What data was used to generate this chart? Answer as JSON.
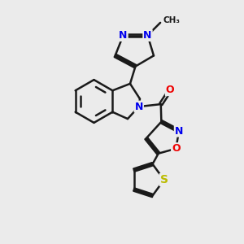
{
  "background_color": "#ebebeb",
  "bond_color": "#1a1a1a",
  "bond_width": 1.8,
  "atom_colors": {
    "N": "#0000ee",
    "O": "#ee0000",
    "S": "#bbbb00",
    "C": "#1a1a1a"
  },
  "font_size_atom": 9
}
